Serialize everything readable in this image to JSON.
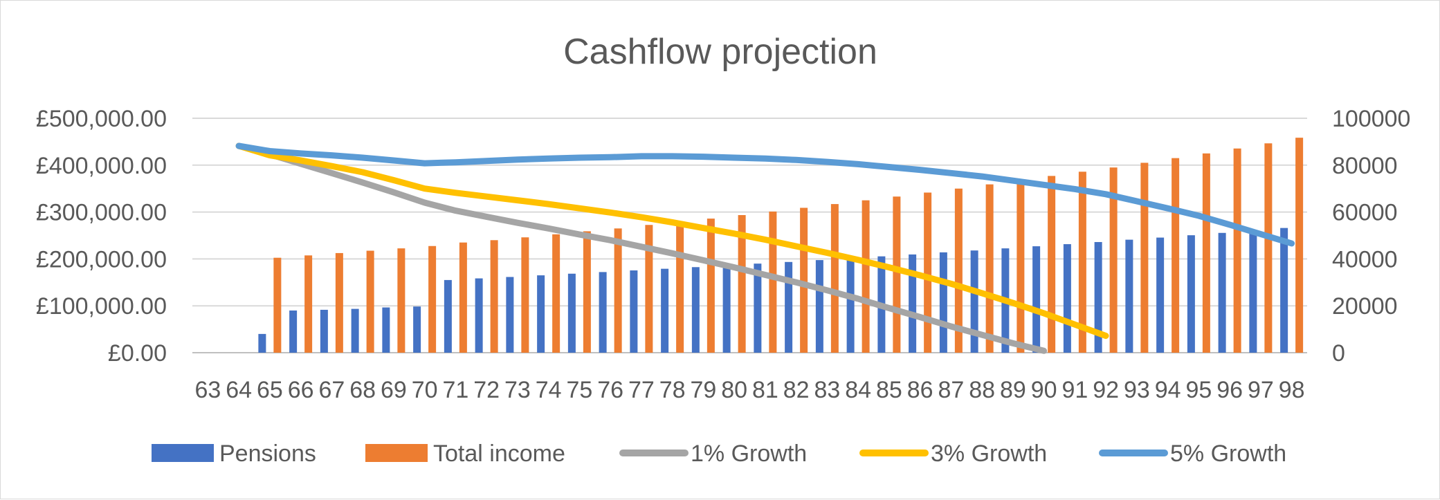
{
  "chart_data": {
    "type": "bar",
    "title": "Cashflow projection",
    "categories": [
      "63",
      "64",
      "65",
      "66",
      "67",
      "68",
      "69",
      "70",
      "71",
      "72",
      "73",
      "74",
      "75",
      "76",
      "77",
      "78",
      "79",
      "80",
      "81",
      "82",
      "83",
      "84",
      "85",
      "86",
      "87",
      "88",
      "89",
      "90",
      "91",
      "92",
      "93",
      "94",
      "95",
      "96",
      "97",
      "98"
    ],
    "y_left": {
      "ylim": [
        0,
        500000
      ],
      "tick_labels": [
        "£0.00",
        "£100,000.00",
        "£200,000.00",
        "£300,000.00",
        "£400,000.00",
        "£500,000.00"
      ]
    },
    "y_right": {
      "ylim": [
        0,
        100000
      ],
      "tick_labels": [
        "0",
        "20000",
        "40000",
        "60000",
        "80000",
        "100000"
      ]
    },
    "grid": true,
    "legend_position": "bottom",
    "series": [
      {
        "name": "Pensions",
        "kind": "bar",
        "axis": "right",
        "color": "#4472C4",
        "values": [
          null,
          null,
          8000,
          18000,
          18300,
          18700,
          19300,
          19700,
          31000,
          31700,
          32300,
          33000,
          33700,
          34400,
          35100,
          35800,
          36500,
          37200,
          38000,
          38700,
          39500,
          40300,
          41100,
          41900,
          42800,
          43600,
          44500,
          45400,
          46300,
          47200,
          48200,
          49100,
          50100,
          51100,
          52100,
          53200
        ]
      },
      {
        "name": "Total income",
        "kind": "bar",
        "axis": "right",
        "color": "#ED7D31",
        "values": [
          null,
          null,
          40500,
          41500,
          42500,
          43500,
          44500,
          45500,
          47000,
          48000,
          49200,
          50500,
          51800,
          53000,
          54500,
          56000,
          57200,
          58700,
          60200,
          61800,
          63400,
          65000,
          66600,
          68300,
          70000,
          71800,
          73600,
          75400,
          77200,
          79000,
          81000,
          83000,
          85000,
          87100,
          89300,
          91700
        ]
      },
      {
        "name": "1% Growth",
        "kind": "line",
        "axis": "left",
        "color": "#A5A5A5",
        "values": [
          null,
          441000,
          423000,
          403000,
          383000,
          363000,
          342000,
          320000,
          303000,
          290000,
          277000,
          265000,
          252000,
          240000,
          226000,
          212000,
          197000,
          182000,
          166000,
          150000,
          133000,
          115000,
          95000,
          76000,
          56000,
          38000,
          20000,
          4000,
          null,
          null,
          null,
          null,
          null,
          null,
          null,
          null
        ]
      },
      {
        "name": "3% Growth",
        "kind": "line",
        "axis": "left",
        "color": "#FFC000",
        "values": [
          null,
          441000,
          421000,
          410000,
          398000,
          385000,
          368000,
          350000,
          341000,
          333000,
          325000,
          317000,
          308000,
          299000,
          289000,
          278000,
          266000,
          254000,
          241000,
          227000,
          213000,
          198000,
          182000,
          165000,
          147000,
          127000,
          106000,
          84000,
          60000,
          36000,
          null,
          null,
          null,
          null,
          null,
          null
        ]
      },
      {
        "name": "5% Growth",
        "kind": "line",
        "axis": "left",
        "color": "#5B9BD5",
        "values": [
          null,
          441000,
          430000,
          425000,
          421000,
          416000,
          410000,
          404000,
          406000,
          409000,
          412000,
          414000,
          416000,
          417000,
          419000,
          419000,
          418000,
          416000,
          414000,
          411000,
          407000,
          402000,
          396000,
          390000,
          383000,
          376000,
          367000,
          358000,
          349000,
          338000,
          323000,
          308000,
          292000,
          273000,
          253000,
          233000
        ]
      }
    ]
  }
}
